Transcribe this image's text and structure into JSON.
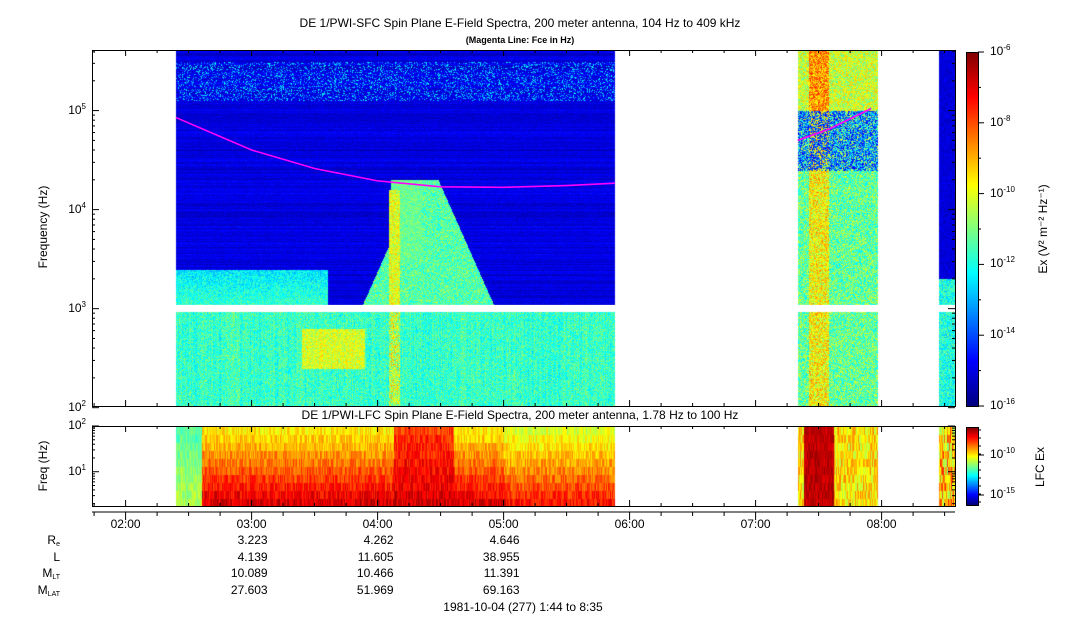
{
  "header": {
    "title": "DE 1/PWI-SFC  Spin Plane E-Field Spectra, 200 meter antenna, 104 Hz to 409 kHz",
    "subtitle": "(Magenta Line: Fce in Hz)"
  },
  "lfc_header": {
    "title": "DE 1/PWI-LFC  Spin Plane E-Field Spectra, 200 meter antenna, 1.78 Hz to 100 Hz"
  },
  "chart_data": [
    {
      "type": "heatmap",
      "name_panel": "SFC",
      "ylabel": "Frequency (Hz)",
      "yscale": "log",
      "ylim_hz": [
        104,
        409000
      ],
      "ytick_exponents": [
        2,
        3,
        4,
        5
      ],
      "x_range": [
        "01:44",
        "08:35"
      ],
      "data_intervals": [
        [
          "02:24",
          "05:53"
        ],
        [
          "07:20",
          "07:58"
        ],
        [
          "08:27",
          "08:35"
        ]
      ],
      "colorbar": {
        "label": "Ex (V² m⁻² Hz⁻¹)",
        "scale": "log",
        "range_exp": [
          -16,
          -6
        ],
        "tick_exponents": [
          -16,
          -14,
          -12,
          -10,
          -8,
          -6
        ],
        "colormap": "jet"
      },
      "fce_line": {
        "color": "#ff00ff",
        "label": "Fce in Hz",
        "segments": [
          [
            [
              "02:24",
              85000
            ],
            [
              "03:00",
              40000
            ],
            [
              "03:30",
              26000
            ],
            [
              "04:00",
              19500
            ],
            [
              "04:30",
              17000
            ],
            [
              "05:00",
              16800
            ],
            [
              "05:30",
              17500
            ],
            [
              "05:53",
              18500
            ]
          ],
          [
            [
              "07:20",
              50000
            ],
            [
              "07:35",
              65000
            ],
            [
              "07:55",
              105000
            ]
          ]
        ]
      }
    },
    {
      "type": "heatmap",
      "name_panel": "LFC",
      "ylabel": "Freq (Hz)",
      "yscale": "log",
      "ylim_hz": [
        1.78,
        100
      ],
      "ytick_exponents": [
        1,
        2
      ],
      "data_intervals": [
        [
          "02:24",
          "05:53"
        ],
        [
          "07:20",
          "07:58"
        ],
        [
          "08:27",
          "08:35"
        ]
      ],
      "colorbar": {
        "label": "LFC Ex",
        "scale": "log",
        "tick_exponents": [
          -15,
          -10
        ],
        "colormap": "jet"
      }
    }
  ],
  "x_axis": {
    "tick_labels": [
      "02:00",
      "03:00",
      "04:00",
      "05:00",
      "06:00",
      "07:00",
      "08:00"
    ]
  },
  "ephemeris": {
    "rows": [
      {
        "label": "R",
        "sub": "e",
        "values": [
          "3.223",
          "4.262",
          "4.646"
        ]
      },
      {
        "label": "L",
        "sub": "",
        "values": [
          "4.139",
          "11.605",
          "38.955"
        ]
      },
      {
        "label": "M",
        "sub": "LT",
        "values": [
          "10.089",
          "10.466",
          "11.391"
        ]
      },
      {
        "label": "M",
        "sub": "LAT",
        "values": [
          "27.603",
          "51.969",
          "69.163"
        ]
      }
    ],
    "date_range": "1981-10-04 (277) 1:44 to 8:35"
  }
}
